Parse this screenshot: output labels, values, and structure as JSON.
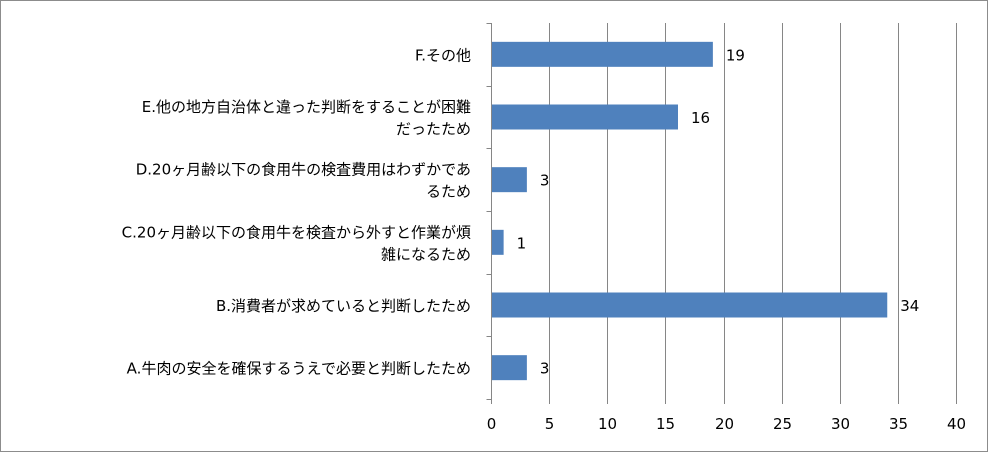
{
  "chart_data": {
    "type": "bar",
    "orientation": "horizontal",
    "categories": [
      "F.その他",
      "E.他の地方自治体と違った判断をすることが困難だったため",
      "D.20ヶ月齢以下の食用牛の検査費用はわずかであるため",
      "C.20ヶ月齢以下の食用牛を検査から外すと作業が煩雑になるため",
      "B.消費者が求めていると判断したため",
      "A.牛肉の安全を確保するうえで必要と判断したため"
    ],
    "category_lines": [
      [
        "F.その他"
      ],
      [
        "E.他の地方自治体と違った判断をすることが困難",
        "だったため"
      ],
      [
        "D.20ヶ月齢以下の食用牛の検査費用はわずかであ",
        "るため"
      ],
      [
        "C.20ヶ月齢以下の食用牛を検査から外すと作業が煩",
        "雑になるため"
      ],
      [
        "B.消費者が求めていると判断したため"
      ],
      [
        "A.牛肉の安全を確保するうえで必要と判断したため"
      ]
    ],
    "values": [
      19,
      16,
      3,
      1,
      34,
      3
    ],
    "xlim": [
      0,
      40
    ],
    "xticks": [
      0,
      5,
      10,
      15,
      20,
      25,
      30,
      35,
      40
    ],
    "grid": "vertical",
    "legend": "none",
    "bar_color": "#4f81bd",
    "grid_color": "#868686",
    "axis_color": "#868686"
  }
}
